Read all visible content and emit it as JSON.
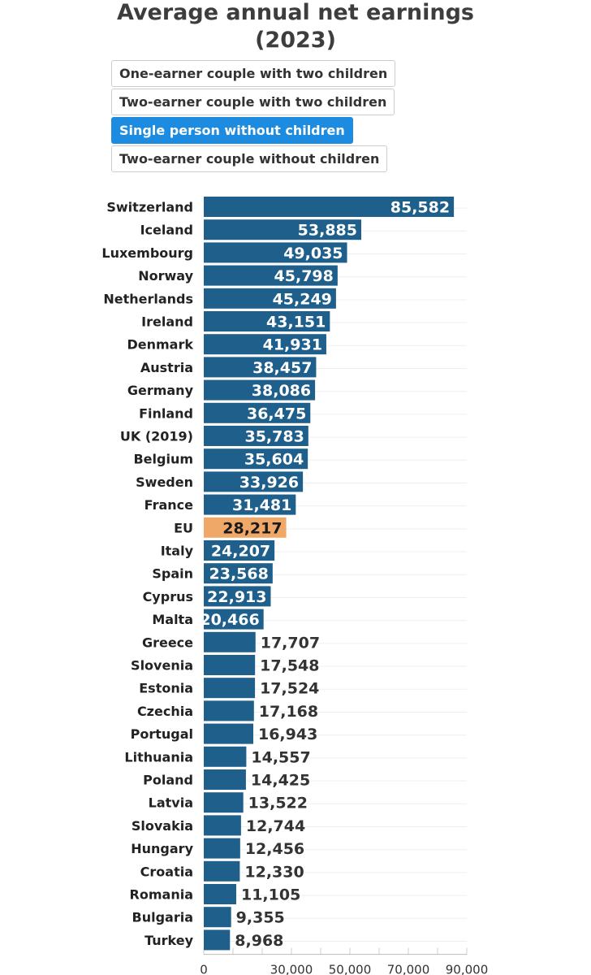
{
  "title_line1": "Average annual net earnings",
  "title_line2": "(2023)",
  "filters": [
    {
      "label": "One-earner couple with two children",
      "active": false
    },
    {
      "label": "Two-earner couple with two children",
      "active": false
    },
    {
      "label": "Single person without children",
      "active": true
    },
    {
      "label": "Two-earner couple without children",
      "active": false
    }
  ],
  "colors": {
    "bar": "#1f5f8b",
    "highlight": "#f0a868",
    "active_filter": "#1d8ce0",
    "grid": "#e6e6e6"
  },
  "chart_data": {
    "type": "bar",
    "orientation": "horizontal",
    "title": "Average annual net earnings (2023)",
    "series_name": "Single person without children",
    "highlight": "EU",
    "categories": [
      "Switzerland",
      "Iceland",
      "Luxembourg",
      "Norway",
      "Netherlands",
      "Ireland",
      "Denmark",
      "Austria",
      "Germany",
      "Finland",
      "UK (2019)",
      "Belgium",
      "Sweden",
      "France",
      "EU",
      "Italy",
      "Spain",
      "Cyprus",
      "Malta",
      "Greece",
      "Slovenia",
      "Estonia",
      "Czechia",
      "Portugal",
      "Lithuania",
      "Poland",
      "Latvia",
      "Slovakia",
      "Hungary",
      "Croatia",
      "Romania",
      "Bulgaria",
      "Turkey"
    ],
    "values": [
      85582,
      53885,
      49035,
      45798,
      45249,
      43151,
      41931,
      38457,
      38086,
      36475,
      35783,
      35604,
      33926,
      31481,
      28217,
      24207,
      23568,
      22913,
      20466,
      17707,
      17548,
      17524,
      17168,
      16943,
      14557,
      14425,
      13522,
      12744,
      12456,
      12330,
      11105,
      9355,
      8968
    ],
    "value_labels": [
      "85,582",
      "53,885",
      "49,035",
      "45,798",
      "45,249",
      "43,151",
      "41,931",
      "38,457",
      "38,086",
      "36,475",
      "35,783",
      "35,604",
      "33,926",
      "31,481",
      "28,217",
      "24,207",
      "23,568",
      "22,913",
      "20,466",
      "17,707",
      "17,548",
      "17,524",
      "17,168",
      "16,943",
      "14,557",
      "14,425",
      "13,522",
      "12,744",
      "12,456",
      "12,330",
      "11,105",
      "9,355",
      "8,968"
    ],
    "xlim": [
      0,
      90000
    ],
    "x_gridlines": [
      0,
      10000,
      20000,
      30000,
      40000,
      50000,
      60000,
      70000,
      80000,
      90000
    ],
    "x_ticks": [
      0,
      30000,
      50000,
      70000,
      90000
    ],
    "x_tick_labels": [
      "0",
      "30,000",
      "50,000",
      "70,000",
      "90,000"
    ],
    "xlabel": "",
    "ylabel": ""
  }
}
